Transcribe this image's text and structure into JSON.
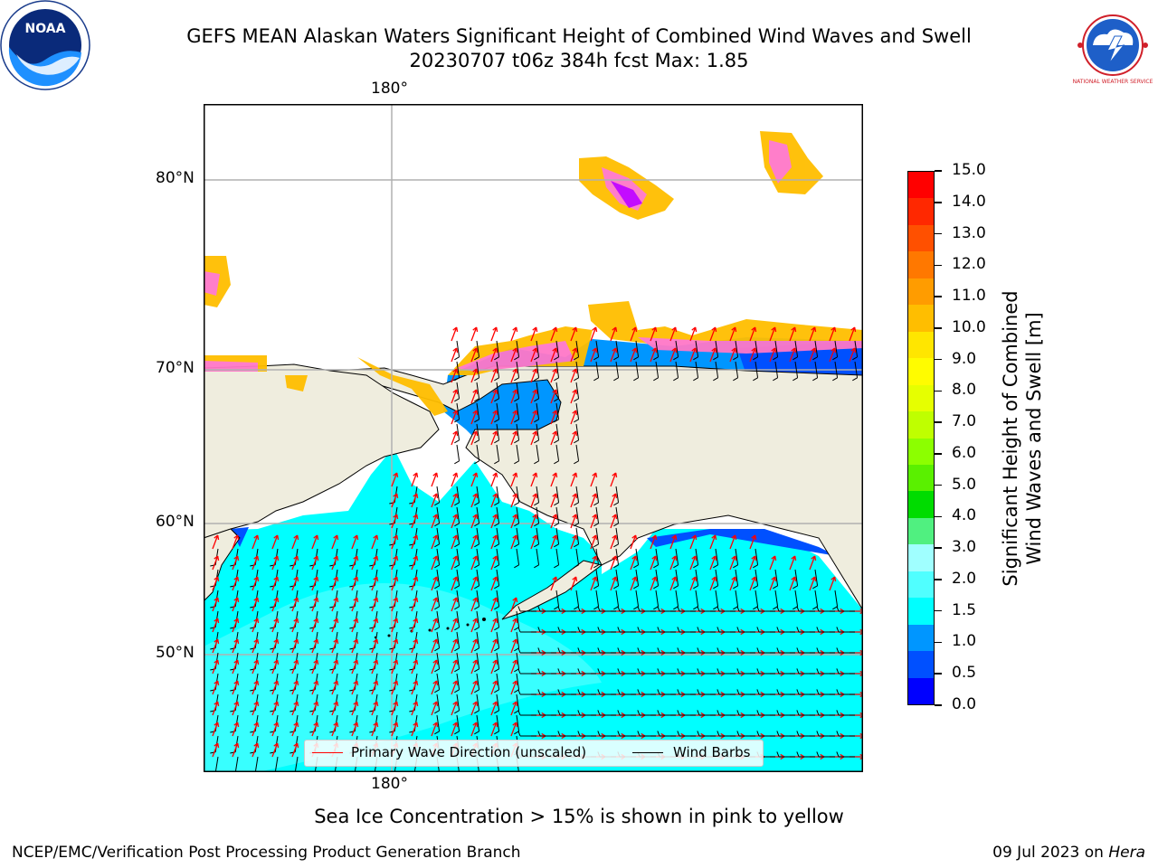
{
  "title": {
    "line1": "GEFS MEAN Alaskan Waters Significant Height of Combined Wind Waves and Swell",
    "line2": "20230707 t06z 384h fcst   Max: 1.85"
  },
  "logos": {
    "left": {
      "icon": "noaa-logo",
      "text": "NOAA"
    },
    "right": {
      "icon": "nws-logo",
      "text": "NATIONAL WEATHER SERVICE"
    }
  },
  "map": {
    "lon_top": "180°",
    "lon_bottom": "180°",
    "lat_labels": [
      "80°N",
      "70°N",
      "60°N",
      "50°N"
    ],
    "land_color": "#efedde",
    "legend": {
      "wave": {
        "label": "Primary Wave Direction (unscaled)",
        "color": "#ff0000"
      },
      "wind": {
        "label": "Wind Barbs",
        "color": "#000000"
      }
    }
  },
  "colorbar": {
    "label_line1": "Significant Height of Combined",
    "label_line2": "Wind Waves and Swell [m]",
    "ticks": [
      "15.0",
      "14.0",
      "13.0",
      "12.0",
      "11.0",
      "10.0",
      "9.0",
      "8.0",
      "7.0",
      "6.0",
      "5.0",
      "4.0",
      "3.0",
      "2.0",
      "1.5",
      "1.0",
      "0.5",
      "0.0"
    ],
    "colors_top_to_bottom": [
      "#ff0000",
      "#ff2800",
      "#ff5000",
      "#ff7800",
      "#ff9c00",
      "#ffbe00",
      "#ffe600",
      "#fffc00",
      "#e6ff00",
      "#bfff00",
      "#8cff00",
      "#5af000",
      "#00dc00",
      "#50f080",
      "#a0ffff",
      "#50ffff",
      "#00ffff",
      "#0096ff",
      "#0050ff",
      "#0000ff"
    ]
  },
  "caption": "Sea Ice Concentration > 15% is shown in pink to yellow",
  "footer": {
    "left": "NCEP/EMC/Verification Post Processing Product Generation Branch",
    "right_prefix": "09 Jul 2023 on ",
    "right_host": "Hera"
  }
}
